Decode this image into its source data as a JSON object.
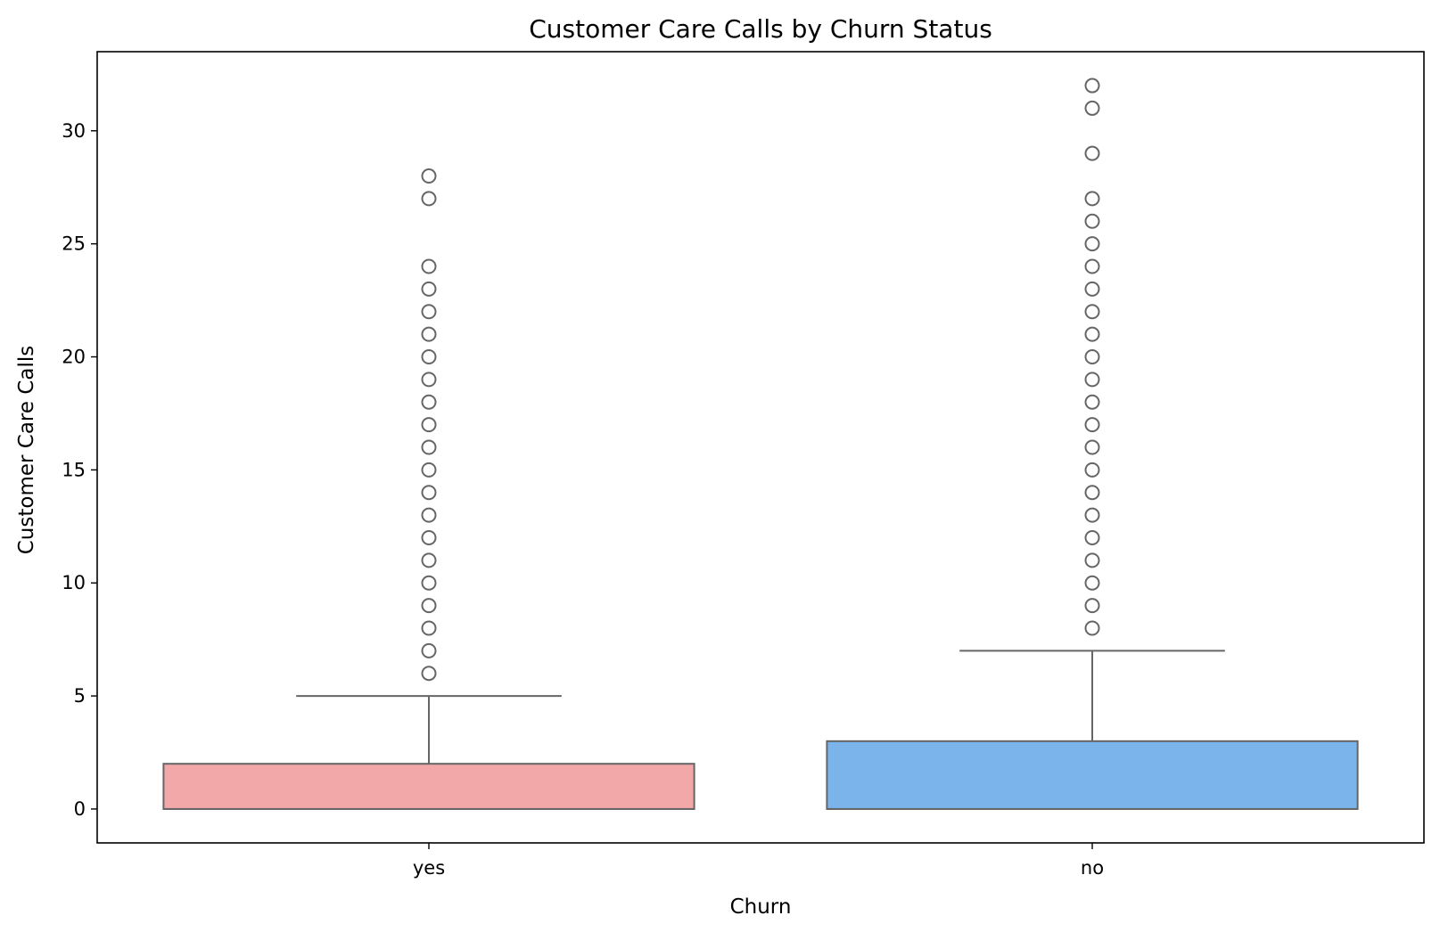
{
  "chart_data": {
    "type": "box",
    "title": "Customer Care Calls by Churn Status",
    "xlabel": "Churn",
    "ylabel": "Customer Care Calls",
    "ylim": [
      -1.5,
      33.5
    ],
    "yticks": [
      0,
      5,
      10,
      15,
      20,
      25,
      30
    ],
    "grid": false,
    "categories": [
      "yes",
      "no"
    ],
    "series": [
      {
        "category": "yes",
        "color": "#f2a7a8",
        "min": 0,
        "q1": 0,
        "median": 0,
        "q3": 2,
        "whisker_high": 5,
        "outliers": [
          6,
          7,
          8,
          9,
          10,
          11,
          12,
          13,
          14,
          15,
          16,
          17,
          18,
          19,
          20,
          21,
          22,
          23,
          24,
          27,
          28
        ]
      },
      {
        "category": "no",
        "color": "#7ab4eb",
        "min": 0,
        "q1": 0,
        "median": 0,
        "q3": 3,
        "whisker_high": 7,
        "outliers": [
          8,
          9,
          10,
          11,
          12,
          13,
          14,
          15,
          16,
          17,
          18,
          19,
          20,
          21,
          22,
          23,
          24,
          25,
          26,
          27,
          29,
          31,
          32
        ]
      }
    ],
    "line_color": "#666666"
  }
}
